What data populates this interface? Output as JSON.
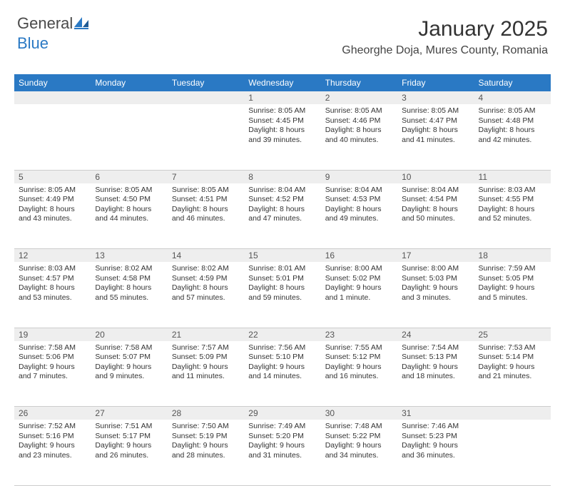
{
  "brand": {
    "part1": "General",
    "part2": "Blue"
  },
  "title": "January 2025",
  "location": "Gheorghe Doja, Mures County, Romania",
  "weekdays": [
    "Sunday",
    "Monday",
    "Tuesday",
    "Wednesday",
    "Thursday",
    "Friday",
    "Saturday"
  ],
  "colors": {
    "header_bg": "#2a79c4",
    "header_text": "#ffffff",
    "daynum_bg": "#eeeeee",
    "border": "#cccccc",
    "body_text": "#333333"
  },
  "weeks": [
    {
      "nums": [
        "",
        "",
        "",
        "1",
        "2",
        "3",
        "4"
      ],
      "cells": [
        {
          "sunrise": "",
          "sunset": "",
          "daylight": ""
        },
        {
          "sunrise": "",
          "sunset": "",
          "daylight": ""
        },
        {
          "sunrise": "",
          "sunset": "",
          "daylight": ""
        },
        {
          "sunrise": "Sunrise: 8:05 AM",
          "sunset": "Sunset: 4:45 PM",
          "daylight": "Daylight: 8 hours and 39 minutes."
        },
        {
          "sunrise": "Sunrise: 8:05 AM",
          "sunset": "Sunset: 4:46 PM",
          "daylight": "Daylight: 8 hours and 40 minutes."
        },
        {
          "sunrise": "Sunrise: 8:05 AM",
          "sunset": "Sunset: 4:47 PM",
          "daylight": "Daylight: 8 hours and 41 minutes."
        },
        {
          "sunrise": "Sunrise: 8:05 AM",
          "sunset": "Sunset: 4:48 PM",
          "daylight": "Daylight: 8 hours and 42 minutes."
        }
      ]
    },
    {
      "nums": [
        "5",
        "6",
        "7",
        "8",
        "9",
        "10",
        "11"
      ],
      "cells": [
        {
          "sunrise": "Sunrise: 8:05 AM",
          "sunset": "Sunset: 4:49 PM",
          "daylight": "Daylight: 8 hours and 43 minutes."
        },
        {
          "sunrise": "Sunrise: 8:05 AM",
          "sunset": "Sunset: 4:50 PM",
          "daylight": "Daylight: 8 hours and 44 minutes."
        },
        {
          "sunrise": "Sunrise: 8:05 AM",
          "sunset": "Sunset: 4:51 PM",
          "daylight": "Daylight: 8 hours and 46 minutes."
        },
        {
          "sunrise": "Sunrise: 8:04 AM",
          "sunset": "Sunset: 4:52 PM",
          "daylight": "Daylight: 8 hours and 47 minutes."
        },
        {
          "sunrise": "Sunrise: 8:04 AM",
          "sunset": "Sunset: 4:53 PM",
          "daylight": "Daylight: 8 hours and 49 minutes."
        },
        {
          "sunrise": "Sunrise: 8:04 AM",
          "sunset": "Sunset: 4:54 PM",
          "daylight": "Daylight: 8 hours and 50 minutes."
        },
        {
          "sunrise": "Sunrise: 8:03 AM",
          "sunset": "Sunset: 4:55 PM",
          "daylight": "Daylight: 8 hours and 52 minutes."
        }
      ]
    },
    {
      "nums": [
        "12",
        "13",
        "14",
        "15",
        "16",
        "17",
        "18"
      ],
      "cells": [
        {
          "sunrise": "Sunrise: 8:03 AM",
          "sunset": "Sunset: 4:57 PM",
          "daylight": "Daylight: 8 hours and 53 minutes."
        },
        {
          "sunrise": "Sunrise: 8:02 AM",
          "sunset": "Sunset: 4:58 PM",
          "daylight": "Daylight: 8 hours and 55 minutes."
        },
        {
          "sunrise": "Sunrise: 8:02 AM",
          "sunset": "Sunset: 4:59 PM",
          "daylight": "Daylight: 8 hours and 57 minutes."
        },
        {
          "sunrise": "Sunrise: 8:01 AM",
          "sunset": "Sunset: 5:01 PM",
          "daylight": "Daylight: 8 hours and 59 minutes."
        },
        {
          "sunrise": "Sunrise: 8:00 AM",
          "sunset": "Sunset: 5:02 PM",
          "daylight": "Daylight: 9 hours and 1 minute."
        },
        {
          "sunrise": "Sunrise: 8:00 AM",
          "sunset": "Sunset: 5:03 PM",
          "daylight": "Daylight: 9 hours and 3 minutes."
        },
        {
          "sunrise": "Sunrise: 7:59 AM",
          "sunset": "Sunset: 5:05 PM",
          "daylight": "Daylight: 9 hours and 5 minutes."
        }
      ]
    },
    {
      "nums": [
        "19",
        "20",
        "21",
        "22",
        "23",
        "24",
        "25"
      ],
      "cells": [
        {
          "sunrise": "Sunrise: 7:58 AM",
          "sunset": "Sunset: 5:06 PM",
          "daylight": "Daylight: 9 hours and 7 minutes."
        },
        {
          "sunrise": "Sunrise: 7:58 AM",
          "sunset": "Sunset: 5:07 PM",
          "daylight": "Daylight: 9 hours and 9 minutes."
        },
        {
          "sunrise": "Sunrise: 7:57 AM",
          "sunset": "Sunset: 5:09 PM",
          "daylight": "Daylight: 9 hours and 11 minutes."
        },
        {
          "sunrise": "Sunrise: 7:56 AM",
          "sunset": "Sunset: 5:10 PM",
          "daylight": "Daylight: 9 hours and 14 minutes."
        },
        {
          "sunrise": "Sunrise: 7:55 AM",
          "sunset": "Sunset: 5:12 PM",
          "daylight": "Daylight: 9 hours and 16 minutes."
        },
        {
          "sunrise": "Sunrise: 7:54 AM",
          "sunset": "Sunset: 5:13 PM",
          "daylight": "Daylight: 9 hours and 18 minutes."
        },
        {
          "sunrise": "Sunrise: 7:53 AM",
          "sunset": "Sunset: 5:14 PM",
          "daylight": "Daylight: 9 hours and 21 minutes."
        }
      ]
    },
    {
      "nums": [
        "26",
        "27",
        "28",
        "29",
        "30",
        "31",
        ""
      ],
      "cells": [
        {
          "sunrise": "Sunrise: 7:52 AM",
          "sunset": "Sunset: 5:16 PM",
          "daylight": "Daylight: 9 hours and 23 minutes."
        },
        {
          "sunrise": "Sunrise: 7:51 AM",
          "sunset": "Sunset: 5:17 PM",
          "daylight": "Daylight: 9 hours and 26 minutes."
        },
        {
          "sunrise": "Sunrise: 7:50 AM",
          "sunset": "Sunset: 5:19 PM",
          "daylight": "Daylight: 9 hours and 28 minutes."
        },
        {
          "sunrise": "Sunrise: 7:49 AM",
          "sunset": "Sunset: 5:20 PM",
          "daylight": "Daylight: 9 hours and 31 minutes."
        },
        {
          "sunrise": "Sunrise: 7:48 AM",
          "sunset": "Sunset: 5:22 PM",
          "daylight": "Daylight: 9 hours and 34 minutes."
        },
        {
          "sunrise": "Sunrise: 7:46 AM",
          "sunset": "Sunset: 5:23 PM",
          "daylight": "Daylight: 9 hours and 36 minutes."
        },
        {
          "sunrise": "",
          "sunset": "",
          "daylight": ""
        }
      ]
    }
  ]
}
